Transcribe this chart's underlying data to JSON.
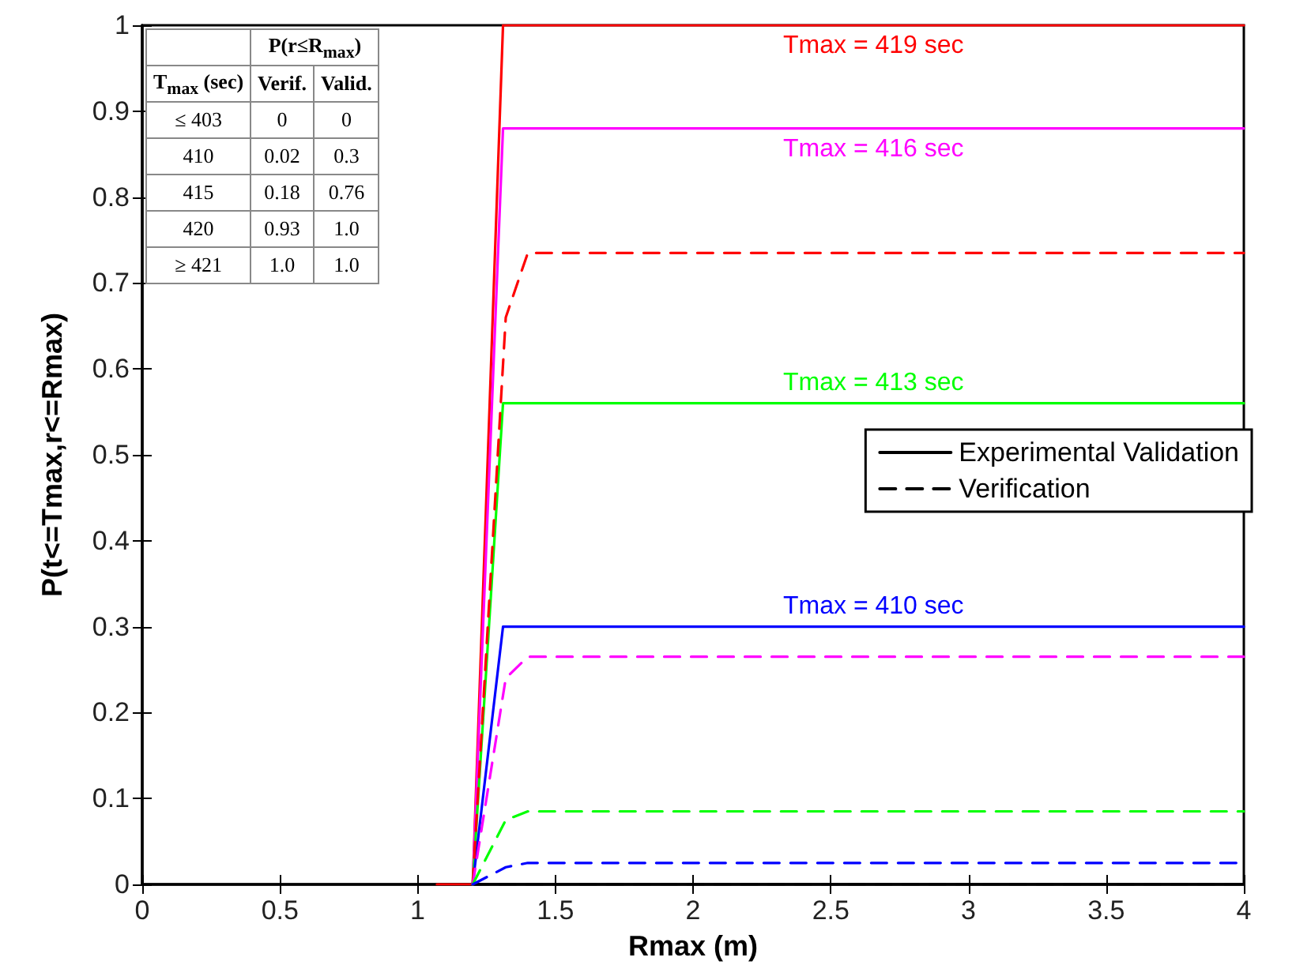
{
  "chart_data": {
    "type": "line",
    "xlabel": "Rmax (m)",
    "ylabel": "P(t<=Tmax,r<=Rmax)",
    "xlim": [
      0,
      4
    ],
    "xticks": [
      0,
      0.5,
      1,
      1.5,
      2,
      2.5,
      3,
      3.5,
      4
    ],
    "ylim": [
      0,
      1
    ],
    "yticks": [
      0,
      0.1,
      0.2,
      0.3,
      0.4,
      0.5,
      0.6,
      0.7,
      0.8,
      0.9,
      1
    ],
    "grid": false,
    "legend": "right",
    "marker": "none",
    "series": [
      {
        "name": "Tmax = 419 sec",
        "color": "#ff0000",
        "line_style": "solid",
        "x": [
          1.07,
          1.2,
          1.31,
          4
        ],
        "values": [
          0,
          0,
          1,
          1
        ]
      },
      {
        "name": "Tmax = 416 sec",
        "color": "#ff00ff",
        "line_style": "solid",
        "x": [
          1.2,
          1.31,
          4
        ],
        "values": [
          0,
          0.88,
          0.88
        ]
      },
      {
        "name": "Tmax = 413 sec",
        "color": "#00ff00",
        "line_style": "solid",
        "x": [
          1.2,
          1.31,
          4
        ],
        "values": [
          0,
          0.56,
          0.56
        ]
      },
      {
        "name": "Tmax = 410 sec",
        "color": "#0000ff",
        "line_style": "solid",
        "x": [
          1.2,
          1.31,
          4
        ],
        "values": [
          0,
          0.3,
          0.3
        ]
      },
      {
        "color": "#ff0000",
        "line_style": "dashed",
        "x": [
          1.2,
          1.32,
          1.4,
          4
        ],
        "values": [
          0,
          0.66,
          0.735,
          0.735
        ]
      },
      {
        "color": "#ff00ff",
        "line_style": "dashed",
        "x": [
          1.2,
          1.32,
          1.4,
          4
        ],
        "values": [
          0,
          0.24,
          0.265,
          0.265
        ]
      },
      {
        "color": "#00ff00",
        "line_style": "dashed",
        "x": [
          1.2,
          1.32,
          1.4,
          4
        ],
        "values": [
          0,
          0.075,
          0.085,
          0.085
        ]
      },
      {
        "color": "#0000ff",
        "line_style": "dashed",
        "x": [
          1.2,
          1.32,
          1.4,
          4
        ],
        "values": [
          0,
          0.02,
          0.025,
          0.025
        ]
      },
      {
        "name": "Experimental Validation",
        "color": "#000000",
        "line_style": "solid",
        "x": [
          1.2,
          4
        ],
        "values": [
          0,
          0
        ]
      },
      {
        "name": "Verification",
        "color": "#000000",
        "line_style": "dashed",
        "x": [
          1.2,
          4
        ],
        "values": [
          0,
          0
        ]
      }
    ],
    "annotations": [
      "P(r≤R$_{max}$)",
      "T$_{max}$ (sec)",
      "Verif.",
      "Valid.",
      "≤ 403",
      "0",
      "0",
      "410",
      "0.02",
      "0.3",
      "415",
      "0.18",
      "0.76",
      "420",
      "0.93",
      "1.0",
      "≥ 421",
      "1.0",
      "1.0"
    ]
  }
}
